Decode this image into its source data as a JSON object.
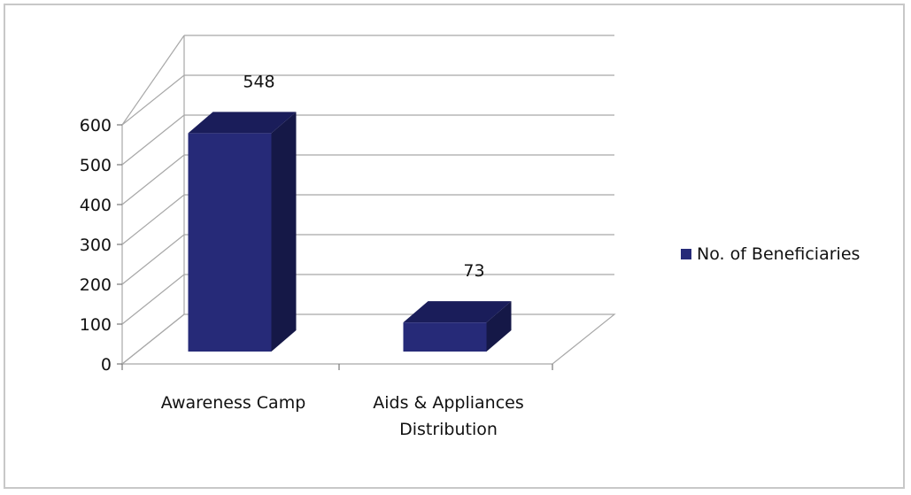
{
  "chart_data": {
    "type": "bar",
    "categories": [
      "Awareness Camp",
      "Aids & Appliances\nDistribution"
    ],
    "series": [
      {
        "name": "No. of Beneficiaries",
        "values": [
          548,
          73
        ]
      }
    ],
    "data_labels": [
      "548",
      "73"
    ],
    "yticks": [
      "0",
      "100",
      "200",
      "300",
      "400",
      "500",
      "600"
    ],
    "ylim": [
      0,
      600
    ],
    "legend_position": "right",
    "grid": true,
    "colors": {
      "bar_front": "#262a78",
      "bar_top": "#1a1d5a",
      "bar_side": "#151847",
      "grid": "#a8a8a8",
      "text": "#111111"
    }
  }
}
